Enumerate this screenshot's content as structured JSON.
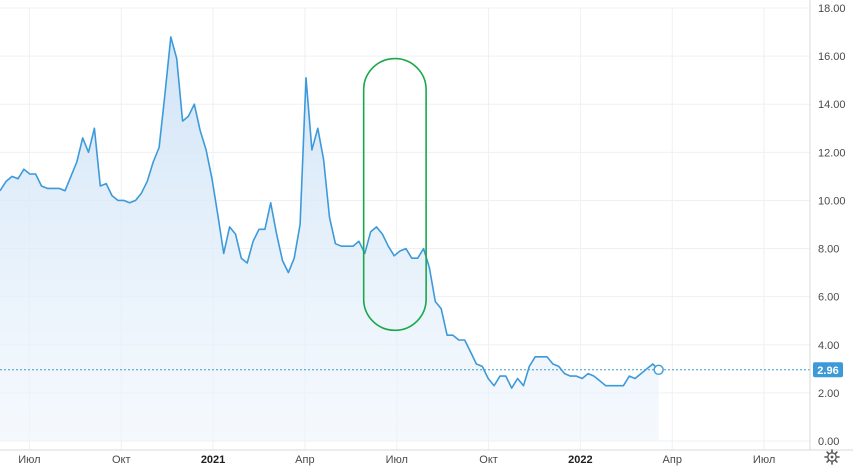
{
  "chart_data": {
    "type": "area",
    "title": "",
    "xlabel": "",
    "ylabel": "",
    "x_range": [
      2020.42,
      2022.625
    ],
    "ylim": [
      0,
      18
    ],
    "y_ticks": [
      "0.00",
      "2.00",
      "4.00",
      "6.00",
      "8.00",
      "10.00",
      "12.00",
      "14.00",
      "16.00",
      "18.00"
    ],
    "x_ticks": [
      {
        "label": "Июл",
        "x": 2020.5,
        "bold": false
      },
      {
        "label": "Окт",
        "x": 2020.75,
        "bold": false
      },
      {
        "label": "2021",
        "x": 2021.0,
        "bold": true
      },
      {
        "label": "Апр",
        "x": 2021.25,
        "bold": false
      },
      {
        "label": "Июл",
        "x": 2021.5,
        "bold": false
      },
      {
        "label": "Окт",
        "x": 2021.75,
        "bold": false
      },
      {
        "label": "2022",
        "x": 2022.0,
        "bold": true
      },
      {
        "label": "Апр",
        "x": 2022.25,
        "bold": false
      },
      {
        "label": "Июл",
        "x": 2022.5,
        "bold": false
      }
    ],
    "grid": true,
    "current_value": "2.96",
    "current_value_num": 2.96,
    "colors": {
      "line": "#3d9ad9",
      "fill": "#dcebfa",
      "badge": "#3d9ad9",
      "badge_text": "#ffffff",
      "grid": "#eef0f3",
      "highlight": "#19a84a"
    },
    "highlight_region": {
      "x_start": 2021.41,
      "x_end": 2021.58,
      "y_min": 4.6,
      "y_max": 15.9
    },
    "series": [
      {
        "values": [
          [
            2020.42,
            10.4
          ],
          [
            2020.437,
            10.8
          ],
          [
            2020.453,
            11.0
          ],
          [
            2020.469,
            10.9
          ],
          [
            2020.485,
            11.3
          ],
          [
            2020.501,
            11.1
          ],
          [
            2020.517,
            11.1
          ],
          [
            2020.533,
            10.6
          ],
          [
            2020.549,
            10.5
          ],
          [
            2020.565,
            10.5
          ],
          [
            2020.581,
            10.5
          ],
          [
            2020.597,
            10.4
          ],
          [
            2020.613,
            11.0
          ],
          [
            2020.629,
            11.6
          ],
          [
            2020.645,
            12.6
          ],
          [
            2020.661,
            12.0
          ],
          [
            2020.677,
            13.0
          ],
          [
            2020.693,
            10.6
          ],
          [
            2020.709,
            10.7
          ],
          [
            2020.725,
            10.2
          ],
          [
            2020.741,
            10.0
          ],
          [
            2020.757,
            10.0
          ],
          [
            2020.773,
            9.9
          ],
          [
            2020.789,
            10.0
          ],
          [
            2020.805,
            10.3
          ],
          [
            2020.821,
            10.8
          ],
          [
            2020.837,
            11.6
          ],
          [
            2020.853,
            12.2
          ],
          [
            2020.869,
            14.4
          ],
          [
            2020.885,
            16.8
          ],
          [
            2020.901,
            15.9
          ],
          [
            2020.917,
            13.3
          ],
          [
            2020.933,
            13.5
          ],
          [
            2020.949,
            14.0
          ],
          [
            2020.965,
            12.9
          ],
          [
            2020.981,
            12.1
          ],
          [
            2020.997,
            10.9
          ],
          [
            2021.013,
            9.4
          ],
          [
            2021.029,
            7.8
          ],
          [
            2021.045,
            8.9
          ],
          [
            2021.061,
            8.6
          ],
          [
            2021.077,
            7.6
          ],
          [
            2021.093,
            7.4
          ],
          [
            2021.109,
            8.3
          ],
          [
            2021.125,
            8.8
          ],
          [
            2021.141,
            8.8
          ],
          [
            2021.157,
            9.9
          ],
          [
            2021.173,
            8.6
          ],
          [
            2021.189,
            7.5
          ],
          [
            2021.205,
            7.0
          ],
          [
            2021.221,
            7.6
          ],
          [
            2021.237,
            9.0
          ],
          [
            2021.253,
            15.1
          ],
          [
            2021.269,
            12.1
          ],
          [
            2021.285,
            13.0
          ],
          [
            2021.301,
            11.7
          ],
          [
            2021.317,
            9.3
          ],
          [
            2021.333,
            8.2
          ],
          [
            2021.349,
            8.1
          ],
          [
            2021.365,
            8.1
          ],
          [
            2021.381,
            8.1
          ],
          [
            2021.397,
            8.3
          ],
          [
            2021.413,
            7.8
          ],
          [
            2021.429,
            8.7
          ],
          [
            2021.445,
            8.9
          ],
          [
            2021.461,
            8.6
          ],
          [
            2021.477,
            8.1
          ],
          [
            2021.493,
            7.7
          ],
          [
            2021.509,
            7.9
          ],
          [
            2021.525,
            8.0
          ],
          [
            2021.541,
            7.6
          ],
          [
            2021.557,
            7.6
          ],
          [
            2021.573,
            8.0
          ],
          [
            2021.589,
            7.2
          ],
          [
            2021.605,
            5.8
          ],
          [
            2021.621,
            5.5
          ],
          [
            2021.637,
            4.4
          ],
          [
            2021.653,
            4.4
          ],
          [
            2021.669,
            4.2
          ],
          [
            2021.685,
            4.2
          ],
          [
            2021.701,
            3.7
          ],
          [
            2021.717,
            3.2
          ],
          [
            2021.733,
            3.1
          ],
          [
            2021.749,
            2.6
          ],
          [
            2021.765,
            2.3
          ],
          [
            2021.781,
            2.7
          ],
          [
            2021.797,
            2.7
          ],
          [
            2021.813,
            2.2
          ],
          [
            2021.829,
            2.6
          ],
          [
            2021.845,
            2.3
          ],
          [
            2021.861,
            3.1
          ],
          [
            2021.877,
            3.5
          ],
          [
            2021.893,
            3.5
          ],
          [
            2021.909,
            3.5
          ],
          [
            2021.925,
            3.2
          ],
          [
            2021.941,
            3.1
          ],
          [
            2021.957,
            2.8
          ],
          [
            2021.973,
            2.7
          ],
          [
            2021.989,
            2.7
          ],
          [
            2022.005,
            2.6
          ],
          [
            2022.021,
            2.8
          ],
          [
            2022.037,
            2.7
          ],
          [
            2022.053,
            2.5
          ],
          [
            2022.069,
            2.3
          ],
          [
            2022.085,
            2.3
          ],
          [
            2022.101,
            2.3
          ],
          [
            2022.117,
            2.3
          ],
          [
            2022.133,
            2.7
          ],
          [
            2022.149,
            2.6
          ],
          [
            2022.165,
            2.8
          ],
          [
            2022.181,
            3.0
          ],
          [
            2022.197,
            3.2
          ],
          [
            2022.213,
            2.96
          ]
        ]
      }
    ]
  }
}
